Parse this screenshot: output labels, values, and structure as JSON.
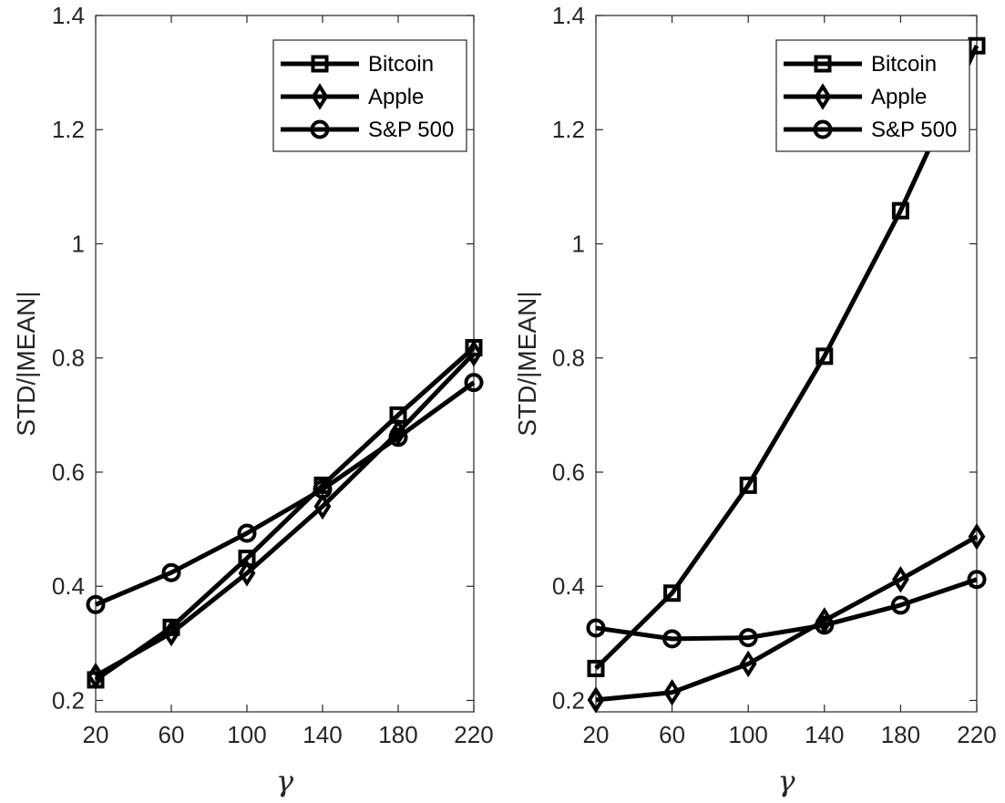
{
  "chart_data": [
    {
      "type": "line",
      "xlabel": "γ",
      "ylabel": "STD/|MEAN|",
      "x": [
        20,
        60,
        100,
        140,
        180,
        220
      ],
      "xticks": [
        "20",
        "60",
        "100",
        "140",
        "180",
        "220"
      ],
      "yticks": [
        "0.2",
        "0.4",
        "0.6",
        "0.8",
        "1",
        "1.2",
        "1.4"
      ],
      "ytick_values": [
        0.2,
        0.4,
        0.6,
        0.8,
        1.0,
        1.2,
        1.4
      ],
      "xlim": [
        20,
        220
      ],
      "ylim": [
        0.18,
        1.4
      ],
      "grid": false,
      "legend_position": "top-right",
      "series": [
        {
          "name": "Bitcoin",
          "marker": "square",
          "values": [
            0.236,
            0.328,
            0.449,
            0.577,
            0.7,
            0.818
          ]
        },
        {
          "name": "Apple",
          "marker": "diamond",
          "values": [
            0.243,
            0.318,
            0.423,
            0.54,
            0.67,
            0.808
          ]
        },
        {
          "name": "S&P 500",
          "marker": "circle",
          "values": [
            0.368,
            0.424,
            0.493,
            0.57,
            0.661,
            0.757
          ]
        }
      ]
    },
    {
      "type": "line",
      "xlabel": "γ",
      "ylabel": "STD/|MEAN|",
      "x": [
        20,
        60,
        100,
        140,
        180,
        220
      ],
      "xticks": [
        "20",
        "60",
        "100",
        "140",
        "180",
        "220"
      ],
      "yticks": [
        "0.2",
        "0.4",
        "0.6",
        "0.8",
        "1",
        "1.2",
        "1.4"
      ],
      "ytick_values": [
        0.2,
        0.4,
        0.6,
        0.8,
        1.0,
        1.2,
        1.4
      ],
      "xlim": [
        20,
        220
      ],
      "ylim": [
        0.18,
        1.4
      ],
      "grid": false,
      "legend_position": "top-right",
      "series": [
        {
          "name": "Bitcoin",
          "marker": "square",
          "values": [
            0.256,
            0.388,
            0.577,
            0.803,
            1.058,
            1.347
          ]
        },
        {
          "name": "Apple",
          "marker": "diamond",
          "values": [
            0.201,
            0.214,
            0.264,
            0.34,
            0.412,
            0.487
          ]
        },
        {
          "name": "S&P 500",
          "marker": "circle",
          "values": [
            0.327,
            0.308,
            0.31,
            0.332,
            0.367,
            0.412
          ]
        }
      ]
    }
  ],
  "colors": {
    "line": "#000000",
    "axis": "#262626",
    "background": "#ffffff"
  }
}
